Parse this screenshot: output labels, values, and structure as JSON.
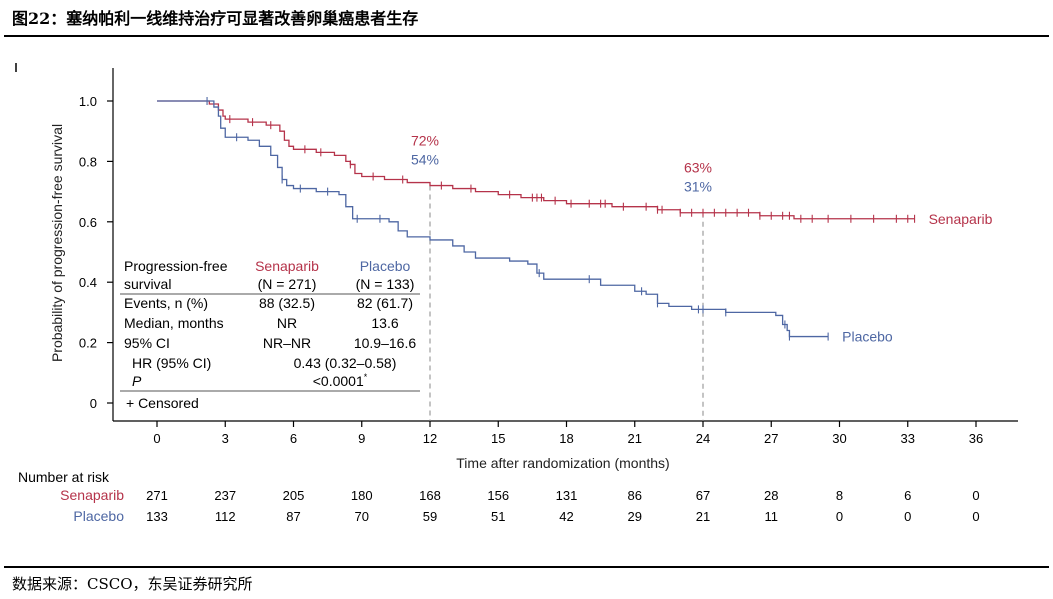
{
  "figure": {
    "title": "图22：塞纳帕利一线维持治疗可显著改善卵巢癌患者生存",
    "source": "数据来源：CSCO，东吴证券研究所"
  },
  "colors": {
    "senaparib": "#b5334a",
    "placebo": "#4e67a3",
    "axis": "#000000",
    "guide": "#888888"
  },
  "chart_data": {
    "type": "line",
    "xlabel": "Time after randomization (months)",
    "ylabel": "Probability of progression-free survival",
    "xlim": [
      0,
      36
    ],
    "ylim": [
      0,
      1.0
    ],
    "x_ticks": [
      "0",
      "3",
      "6",
      "9",
      "12",
      "15",
      "18",
      "21",
      "24",
      "27",
      "30",
      "33",
      "36"
    ],
    "y_ticks": [
      "0",
      "0.2",
      "0.4",
      "0.6",
      "0.8",
      "1.0"
    ],
    "grid": false,
    "series": [
      {
        "name": "Senaparib",
        "color": "#b5334a",
        "points": [
          [
            0,
            1.0
          ],
          [
            1.5,
            1.0
          ],
          [
            2.3,
            0.99
          ],
          [
            2.7,
            0.97
          ],
          [
            2.9,
            0.95
          ],
          [
            3.0,
            0.94
          ],
          [
            4.0,
            0.93
          ],
          [
            4.8,
            0.92
          ],
          [
            5.4,
            0.9
          ],
          [
            5.6,
            0.87
          ],
          [
            5.8,
            0.85
          ],
          [
            6.0,
            0.84
          ],
          [
            7.0,
            0.83
          ],
          [
            7.8,
            0.82
          ],
          [
            8.3,
            0.8
          ],
          [
            8.5,
            0.79
          ],
          [
            8.7,
            0.76
          ],
          [
            9.0,
            0.75
          ],
          [
            10.0,
            0.74
          ],
          [
            11.0,
            0.73
          ],
          [
            12.0,
            0.72
          ],
          [
            13.0,
            0.71
          ],
          [
            14.0,
            0.7
          ],
          [
            15.0,
            0.69
          ],
          [
            16.0,
            0.68
          ],
          [
            17.0,
            0.67
          ],
          [
            18.0,
            0.66
          ],
          [
            19.0,
            0.66
          ],
          [
            20.0,
            0.65
          ],
          [
            21.0,
            0.65
          ],
          [
            22.0,
            0.64
          ],
          [
            23.0,
            0.63
          ],
          [
            24.0,
            0.63
          ],
          [
            25.0,
            0.63
          ],
          [
            26.5,
            0.62
          ],
          [
            27.5,
            0.62
          ],
          [
            28.0,
            0.61
          ],
          [
            30.0,
            0.61
          ],
          [
            33.3,
            0.61
          ]
        ],
        "censors": [
          3.2,
          4.2,
          5.0,
          6.5,
          7.2,
          8.5,
          9.5,
          10.8,
          12.5,
          13.8,
          15.5,
          16.5,
          16.7,
          16.9,
          17.5,
          18.2,
          19.0,
          19.5,
          19.7,
          20.5,
          21.5,
          22.0,
          22.2,
          23.0,
          23.5,
          24.0,
          24.5,
          25.0,
          25.5,
          26.0,
          26.5,
          27.0,
          27.5,
          27.8,
          28.3,
          28.8,
          29.5,
          30.5,
          31.5,
          32.5,
          33.0,
          33.3
        ],
        "end_label": "Senaparib"
      },
      {
        "name": "Placebo",
        "color": "#4e67a3",
        "points": [
          [
            0,
            1.0
          ],
          [
            2.0,
            1.0
          ],
          [
            2.5,
            0.98
          ],
          [
            2.7,
            0.95
          ],
          [
            2.8,
            0.91
          ],
          [
            3.0,
            0.88
          ],
          [
            4.0,
            0.87
          ],
          [
            4.5,
            0.85
          ],
          [
            5.0,
            0.82
          ],
          [
            5.3,
            0.78
          ],
          [
            5.5,
            0.74
          ],
          [
            5.7,
            0.72
          ],
          [
            6.0,
            0.71
          ],
          [
            7.0,
            0.7
          ],
          [
            8.0,
            0.69
          ],
          [
            8.3,
            0.65
          ],
          [
            8.6,
            0.61
          ],
          [
            9.0,
            0.61
          ],
          [
            10.2,
            0.6
          ],
          [
            10.6,
            0.57
          ],
          [
            11.0,
            0.55
          ],
          [
            12.0,
            0.54
          ],
          [
            13.0,
            0.52
          ],
          [
            13.5,
            0.5
          ],
          [
            14.0,
            0.48
          ],
          [
            15.5,
            0.47
          ],
          [
            16.3,
            0.46
          ],
          [
            16.7,
            0.43
          ],
          [
            17.0,
            0.41
          ],
          [
            18.5,
            0.41
          ],
          [
            19.5,
            0.39
          ],
          [
            21.0,
            0.37
          ],
          [
            21.5,
            0.36
          ],
          [
            22.0,
            0.33
          ],
          [
            22.5,
            0.32
          ],
          [
            23.5,
            0.31
          ],
          [
            24.0,
            0.31
          ],
          [
            25.0,
            0.3
          ],
          [
            26.5,
            0.3
          ],
          [
            27.2,
            0.29
          ],
          [
            27.5,
            0.26
          ],
          [
            27.7,
            0.24
          ],
          [
            27.8,
            0.22
          ],
          [
            29.5,
            0.22
          ]
        ],
        "censors": [
          2.2,
          3.5,
          5.5,
          6.3,
          7.5,
          8.8,
          9.8,
          16.8,
          19.0,
          21.3,
          22.0,
          23.8,
          24.0,
          25.0,
          27.6,
          27.8,
          29.5
        ],
        "end_label": "Placebo"
      }
    ],
    "annotations": [
      {
        "x": 12,
        "senaparib_label": "72%",
        "placebo_label": "54%"
      },
      {
        "x": 24,
        "senaparib_label": "63%",
        "placebo_label": "31%"
      }
    ],
    "legend_table": {
      "header": {
        "col0_line1": "Progression-free",
        "col0_line2": "survival",
        "col1_line1": "Senaparib",
        "col1_line2": "(N = 271)",
        "col2_line1": "Placebo",
        "col2_line2": "(N = 133)"
      },
      "rows": [
        {
          "label": "Events, n (%)",
          "senaparib": "88 (32.5)",
          "placebo": "82 (61.7)"
        },
        {
          "label": "Median, months",
          "senaparib": "NR",
          "placebo": "13.6"
        },
        {
          "label": "95% CI",
          "senaparib": "NR–NR",
          "placebo": "10.9–16.6"
        }
      ],
      "hr_label": "HR (95% CI)",
      "hr_value": "0.43 (0.32–0.58)",
      "p_label": "P",
      "p_value": "<0.0001",
      "p_superscript": "*",
      "censored_label": "+ Censored"
    },
    "risk_table": {
      "title": "Number at risk",
      "rows": [
        {
          "name": "Senaparib",
          "color": "#b5334a",
          "values": [
            "271",
            "237",
            "205",
            "180",
            "168",
            "156",
            "131",
            "86",
            "67",
            "28",
            "8",
            "6",
            "0"
          ]
        },
        {
          "name": "Placebo",
          "color": "#4e67a3",
          "values": [
            "133",
            "112",
            "87",
            "70",
            "59",
            "51",
            "42",
            "29",
            "21",
            "11",
            "0",
            "0",
            "0"
          ]
        }
      ]
    }
  }
}
